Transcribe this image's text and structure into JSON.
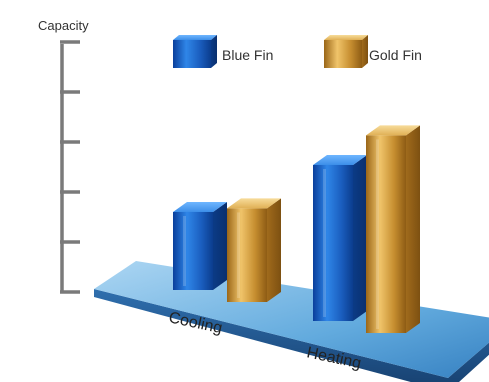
{
  "chart_data": {
    "type": "bar",
    "ylabel": "Capacity",
    "categories": [
      "Cooling",
      "Heating"
    ],
    "series": [
      {
        "name": "Blue Fin",
        "values": [
          1.5,
          3.0
        ]
      },
      {
        "name": "Gold Fin",
        "values": [
          1.8,
          3.8
        ]
      }
    ],
    "ylim": [
      0,
      4.9
    ],
    "yticks_count": 5,
    "tick_labels_shown": false,
    "grid": false,
    "legend_position": "top",
    "colors": {
      "Blue Fin": "#1d64c4",
      "Gold Fin": "#c9912d",
      "platform": "#4e9fd6",
      "axis": "#7a7a7a"
    }
  }
}
